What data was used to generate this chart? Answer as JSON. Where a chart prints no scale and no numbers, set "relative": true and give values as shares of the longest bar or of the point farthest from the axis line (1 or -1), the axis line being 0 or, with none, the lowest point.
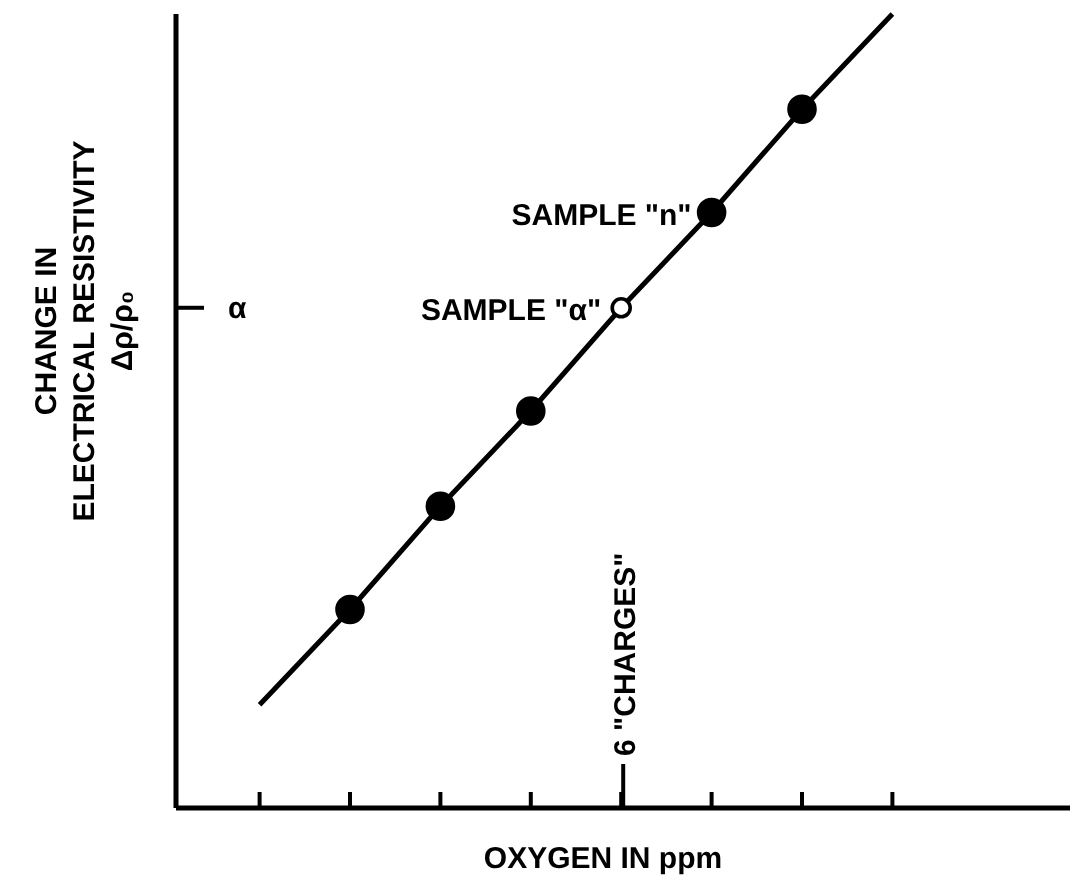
{
  "chart_data": {
    "type": "line",
    "relative": true,
    "xlabel": "OXYGEN IN ppm",
    "ylabel": "CHANGE IN\nELECTRICAL RESISTIVITY\nΔρ/ρ₀",
    "categories": [
      null,
      null,
      null,
      null,
      null,
      null,
      null,
      null
    ],
    "series": [
      {
        "color": "#000000",
        "marker": "circle",
        "values": [
          0.13,
          0.25,
          0.38,
          0.5,
          0.63,
          0.75,
          0.88,
          1.0
        ],
        "colors": [
          null,
          "#000000",
          "#000000",
          "#000000",
          "#ffffff",
          "#000000",
          "#000000",
          null
        ]
      }
    ],
    "ref_lines": [
      {
        "axis": "y",
        "value": 0.63,
        "label": "α"
      }
    ],
    "annotations": [
      "6 \"CHARGES\"",
      "SAMPLE \"α\"",
      "SAMPLE \"n\""
    ]
  }
}
